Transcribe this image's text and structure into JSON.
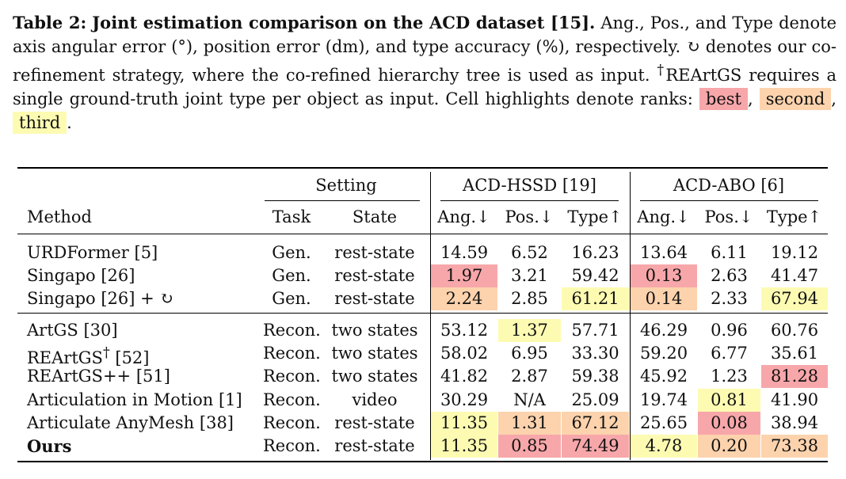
{
  "caption": {
    "label": "Table 2:",
    "title": "Joint estimation comparison on the ACD dataset [15].",
    "text1": " Ang., Pos., and Type denote axis angular error (°), position error (dm), and type accuracy (%), respectively. ",
    "corefine_symbol": "↻",
    "text2": " denotes our co-refinement strategy, where the co-refined hierarchy tree is used as input. ",
    "dagger": "†",
    "text3": "REArtGS requires a single ground-truth joint type per object as input. Cell highlights denote ranks: ",
    "best": "best",
    "sep1": ",",
    "second": "second",
    "sep2": ",",
    "third": "third",
    "end": "."
  },
  "colors": {
    "best": "#f7a7aa",
    "second": "#fcd3ad",
    "third": "#fdfbb2"
  },
  "table": {
    "group_setting": "Setting",
    "group_hssd": "ACD-HSSD [19]",
    "group_abo": "ACD-ABO [6]",
    "headers": [
      "Method",
      "Task",
      "State",
      "Ang.↓",
      "Pos.↓",
      "Type↑",
      "Ang.↓",
      "Pos.↓",
      "Type↑"
    ],
    "rows": [
      {
        "method": "URDFormer [5]",
        "task": "Gen.",
        "state": "rest-state",
        "vals": [
          "14.59",
          "6.52",
          "16.23",
          "13.64",
          "6.11",
          "19.12"
        ],
        "hl": [
          "",
          "",
          "",
          "",
          "",
          ""
        ]
      },
      {
        "method": "Singapo [26]",
        "task": "Gen.",
        "state": "rest-state",
        "vals": [
          "1.97",
          "3.21",
          "59.42",
          "0.13",
          "2.63",
          "41.47"
        ],
        "hl": [
          "best",
          "",
          "",
          "best",
          "",
          ""
        ]
      },
      {
        "method": "Singapo [26] + ↻",
        "task": "Gen.",
        "state": "rest-state",
        "vals": [
          "2.24",
          "2.85",
          "61.21",
          "0.14",
          "2.33",
          "67.94"
        ],
        "hl": [
          "second",
          "",
          "third",
          "second",
          "",
          "third"
        ]
      },
      {
        "method": "ArtGS [30]",
        "task": "Recon.",
        "state": "two states",
        "vals": [
          "53.12",
          "1.37",
          "57.71",
          "46.29",
          "0.96",
          "60.76"
        ],
        "hl": [
          "",
          "third",
          "",
          "",
          "",
          ""
        ]
      },
      {
        "method": "REArtGS",
        "dagger": "†",
        "method_suffix": " [52]",
        "task": "Recon.",
        "state": "two states",
        "vals": [
          "58.02",
          "6.95",
          "33.30",
          "59.20",
          "6.77",
          "35.61"
        ],
        "hl": [
          "",
          "",
          "",
          "",
          "",
          ""
        ]
      },
      {
        "method": "REArtGS++ [51]",
        "task": "Recon.",
        "state": "two states",
        "vals": [
          "41.82",
          "2.87",
          "59.38",
          "45.92",
          "1.23",
          "81.28"
        ],
        "hl": [
          "",
          "",
          "",
          "",
          "",
          "best"
        ]
      },
      {
        "method": "Articulation in Motion [1]",
        "task": "Recon.",
        "state": "video",
        "vals": [
          "30.29",
          "N/A",
          "25.09",
          "19.74",
          "0.81",
          "41.90"
        ],
        "hl": [
          "",
          "",
          "",
          "",
          "third",
          ""
        ]
      },
      {
        "method": "Articulate AnyMesh [38]",
        "task": "Recon.",
        "state": "rest-state",
        "vals": [
          "11.35",
          "1.31",
          "67.12",
          "25.65",
          "0.08",
          "38.94"
        ],
        "hl": [
          "third",
          "second",
          "second",
          "",
          "best",
          ""
        ]
      },
      {
        "method": "Ours",
        "bold": true,
        "task": "Recon.",
        "state": "rest-state",
        "vals": [
          "11.35",
          "0.85",
          "74.49",
          "4.78",
          "0.20",
          "73.38"
        ],
        "hl": [
          "third",
          "best",
          "best",
          "third",
          "second",
          "second"
        ]
      }
    ]
  }
}
